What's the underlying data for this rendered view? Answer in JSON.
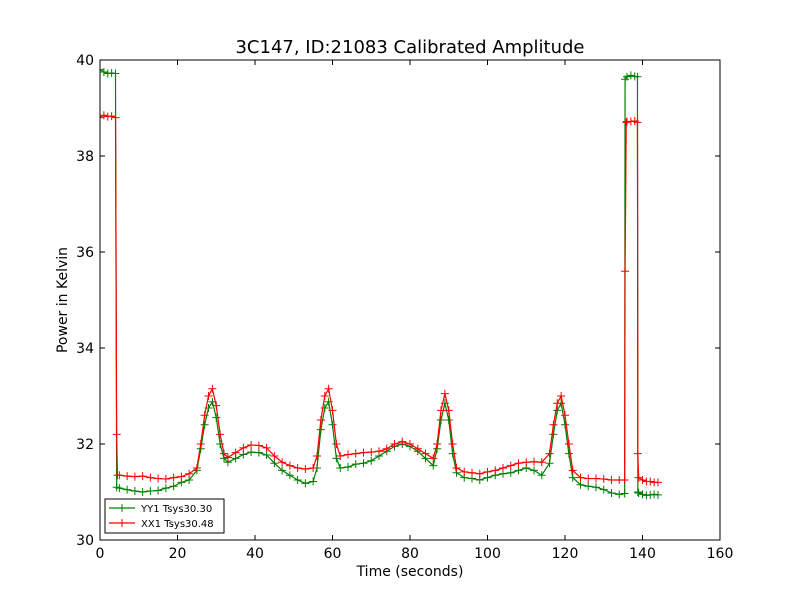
{
  "chart_data": {
    "type": "line",
    "title": "3C147, ID:21083 Calibrated Amplitude",
    "xlabel": "Time (seconds)",
    "ylabel": "Power in Kelvin",
    "xlim": [
      0,
      160
    ],
    "ylim": [
      30,
      40
    ],
    "xticks": [
      0,
      20,
      40,
      60,
      80,
      100,
      120,
      140,
      160
    ],
    "yticks": [
      30,
      32,
      34,
      36,
      38,
      40
    ],
    "grid": false,
    "legend_position": "lower-left",
    "series": [
      {
        "name": "YY1 Tsys30.30",
        "color": "#008000",
        "marker": "plus",
        "points": [
          [
            0,
            39.8
          ],
          [
            1,
            39.75
          ],
          [
            2,
            39.72
          ],
          [
            3,
            39.73
          ],
          [
            4,
            39.72
          ],
          [
            4.3,
            31.1
          ],
          [
            5,
            31.08
          ],
          [
            7,
            31.05
          ],
          [
            9,
            31.02
          ],
          [
            11,
            31.0
          ],
          [
            13,
            31.02
          ],
          [
            15,
            31.03
          ],
          [
            17,
            31.08
          ],
          [
            19,
            31.12
          ],
          [
            21,
            31.2
          ],
          [
            23,
            31.25
          ],
          [
            25,
            31.45
          ],
          [
            26,
            31.9
          ],
          [
            27,
            32.4
          ],
          [
            28,
            32.75
          ],
          [
            29,
            32.88
          ],
          [
            30,
            32.55
          ],
          [
            31,
            32.0
          ],
          [
            32,
            31.7
          ],
          [
            33,
            31.62
          ],
          [
            35,
            31.7
          ],
          [
            37,
            31.78
          ],
          [
            39,
            31.83
          ],
          [
            41,
            31.82
          ],
          [
            43,
            31.77
          ],
          [
            45,
            31.6
          ],
          [
            47,
            31.45
          ],
          [
            49,
            31.35
          ],
          [
            51,
            31.25
          ],
          [
            53,
            31.18
          ],
          [
            55,
            31.22
          ],
          [
            56,
            31.5
          ],
          [
            57,
            32.3
          ],
          [
            58,
            32.75
          ],
          [
            59,
            32.88
          ],
          [
            60,
            32.4
          ],
          [
            61,
            31.7
          ],
          [
            62,
            31.5
          ],
          [
            64,
            31.52
          ],
          [
            66,
            31.58
          ],
          [
            68,
            31.6
          ],
          [
            70,
            31.65
          ],
          [
            72,
            31.75
          ],
          [
            74,
            31.85
          ],
          [
            76,
            31.95
          ],
          [
            78,
            32.0
          ],
          [
            80,
            31.95
          ],
          [
            82,
            31.85
          ],
          [
            84,
            31.7
          ],
          [
            86,
            31.55
          ],
          [
            87,
            31.9
          ],
          [
            88,
            32.5
          ],
          [
            89,
            32.85
          ],
          [
            90,
            32.5
          ],
          [
            91,
            31.8
          ],
          [
            92,
            31.4
          ],
          [
            94,
            31.3
          ],
          [
            96,
            31.28
          ],
          [
            98,
            31.25
          ],
          [
            100,
            31.3
          ],
          [
            102,
            31.35
          ],
          [
            104,
            31.38
          ],
          [
            106,
            31.4
          ],
          [
            108,
            31.45
          ],
          [
            110,
            31.5
          ],
          [
            112,
            31.45
          ],
          [
            114,
            31.35
          ],
          [
            116,
            31.6
          ],
          [
            117,
            32.2
          ],
          [
            118,
            32.7
          ],
          [
            119,
            32.85
          ],
          [
            120,
            32.4
          ],
          [
            121,
            31.8
          ],
          [
            122,
            31.3
          ],
          [
            124,
            31.15
          ],
          [
            126,
            31.12
          ],
          [
            128,
            31.1
          ],
          [
            130,
            31.05
          ],
          [
            132,
            30.98
          ],
          [
            134,
            30.95
          ],
          [
            135.4,
            30.97
          ],
          [
            135.5,
            39.6
          ],
          [
            136,
            39.65
          ],
          [
            137,
            39.68
          ],
          [
            138,
            39.66
          ],
          [
            138.7,
            39.65
          ],
          [
            138.8,
            31.0
          ],
          [
            139,
            30.98
          ],
          [
            140,
            30.95
          ],
          [
            141,
            30.93
          ],
          [
            142,
            30.94
          ],
          [
            143,
            30.95
          ],
          [
            144,
            30.94
          ]
        ]
      },
      {
        "name": "XX1 Tsys30.48",
        "color": "#ff0000",
        "marker": "plus",
        "points": [
          [
            0,
            38.8
          ],
          [
            1,
            38.85
          ],
          [
            2,
            38.82
          ],
          [
            3,
            38.83
          ],
          [
            4,
            38.8
          ],
          [
            4.3,
            32.2
          ],
          [
            4.5,
            31.35
          ],
          [
            5,
            31.35
          ],
          [
            7,
            31.33
          ],
          [
            9,
            31.32
          ],
          [
            11,
            31.33
          ],
          [
            13,
            31.3
          ],
          [
            15,
            31.28
          ],
          [
            17,
            31.27
          ],
          [
            19,
            31.3
          ],
          [
            21,
            31.32
          ],
          [
            23,
            31.38
          ],
          [
            25,
            31.5
          ],
          [
            26,
            32.0
          ],
          [
            27,
            32.6
          ],
          [
            28,
            33.0
          ],
          [
            29,
            33.15
          ],
          [
            30,
            32.8
          ],
          [
            31,
            32.2
          ],
          [
            32,
            31.8
          ],
          [
            33,
            31.72
          ],
          [
            35,
            31.82
          ],
          [
            37,
            31.92
          ],
          [
            39,
            31.98
          ],
          [
            41,
            31.97
          ],
          [
            43,
            31.92
          ],
          [
            45,
            31.75
          ],
          [
            47,
            31.62
          ],
          [
            49,
            31.55
          ],
          [
            51,
            31.5
          ],
          [
            53,
            31.48
          ],
          [
            55,
            31.5
          ],
          [
            56,
            31.75
          ],
          [
            57,
            32.5
          ],
          [
            58,
            33.0
          ],
          [
            59,
            33.15
          ],
          [
            60,
            32.7
          ],
          [
            61,
            32.0
          ],
          [
            62,
            31.75
          ],
          [
            64,
            31.78
          ],
          [
            66,
            31.8
          ],
          [
            68,
            31.82
          ],
          [
            70,
            31.83
          ],
          [
            72,
            31.85
          ],
          [
            74,
            31.9
          ],
          [
            76,
            32.0
          ],
          [
            78,
            32.05
          ],
          [
            80,
            32.0
          ],
          [
            82,
            31.9
          ],
          [
            84,
            31.8
          ],
          [
            86,
            31.7
          ],
          [
            87,
            32.0
          ],
          [
            88,
            32.7
          ],
          [
            89,
            33.05
          ],
          [
            90,
            32.7
          ],
          [
            91,
            32.0
          ],
          [
            92,
            31.5
          ],
          [
            94,
            31.42
          ],
          [
            96,
            31.4
          ],
          [
            98,
            31.38
          ],
          [
            100,
            31.42
          ],
          [
            102,
            31.45
          ],
          [
            104,
            31.5
          ],
          [
            106,
            31.55
          ],
          [
            108,
            31.6
          ],
          [
            110,
            31.62
          ],
          [
            112,
            31.63
          ],
          [
            114,
            31.62
          ],
          [
            116,
            31.8
          ],
          [
            117,
            32.4
          ],
          [
            118,
            32.85
          ],
          [
            119,
            33.0
          ],
          [
            120,
            32.6
          ],
          [
            121,
            32.0
          ],
          [
            122,
            31.45
          ],
          [
            124,
            31.3
          ],
          [
            126,
            31.28
          ],
          [
            128,
            31.28
          ],
          [
            130,
            31.27
          ],
          [
            132,
            31.25
          ],
          [
            134,
            31.25
          ],
          [
            135.4,
            31.25
          ],
          [
            135.5,
            35.6
          ],
          [
            135.8,
            38.7
          ],
          [
            136,
            38.72
          ],
          [
            137,
            38.72
          ],
          [
            138,
            38.73
          ],
          [
            138.7,
            38.7
          ],
          [
            138.8,
            31.8
          ],
          [
            139,
            31.3
          ],
          [
            140,
            31.25
          ],
          [
            141,
            31.22
          ],
          [
            142,
            31.22
          ],
          [
            143,
            31.2
          ],
          [
            144,
            31.2
          ]
        ]
      }
    ]
  }
}
